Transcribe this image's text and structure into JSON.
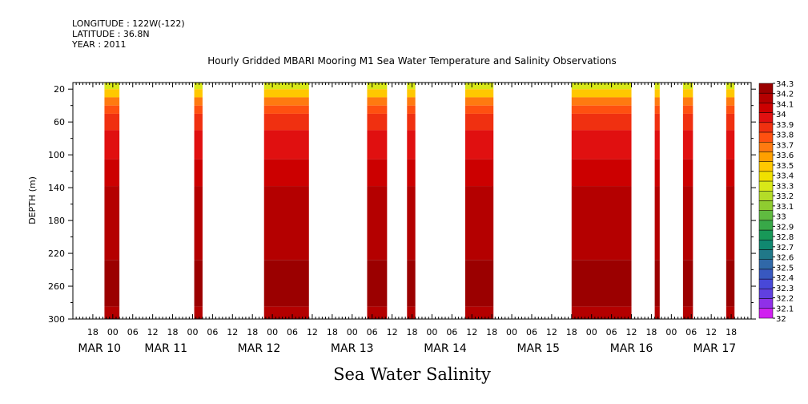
{
  "header": {
    "longitude": "LONGITUDE : 122W(-122)",
    "latitude": "LATITUDE : 36.8N",
    "year": "YEAR : 2011"
  },
  "chart_data": {
    "type": "heatmap",
    "title": "Hourly Gridded MBARI Mooring M1 Sea Water Temperature and Salinity Observations",
    "variable_label": "Sea Water Salinity",
    "ylabel": "DEPTH (m)",
    "ylim": [
      300,
      12
    ],
    "y_ticks": [
      20,
      60,
      100,
      140,
      180,
      220,
      260,
      300
    ],
    "x_range_hours": [
      0,
      204
    ],
    "x_start": "2011-03-10 12:00",
    "x_ticks_hours": [
      6,
      12,
      18,
      24,
      30,
      36,
      42,
      48,
      54,
      60,
      66,
      72,
      78,
      84,
      90,
      96,
      102,
      108,
      114,
      120,
      126,
      132,
      138,
      144,
      150,
      156,
      162,
      168,
      174,
      180,
      186,
      192,
      198
    ],
    "x_tick_labels": [
      "18",
      "00",
      "06",
      "12",
      "18",
      "00",
      "06",
      "12",
      "18",
      "00",
      "06",
      "12",
      "18",
      "00",
      "06",
      "12",
      "18",
      "00",
      "06",
      "12",
      "18",
      "00",
      "06",
      "12",
      "18",
      "00",
      "06",
      "12",
      "18",
      "00",
      "06",
      "12",
      "18"
    ],
    "day_labels": [
      {
        "label": "MAR 10",
        "hour": 8
      },
      {
        "label": "MAR 11",
        "hour": 28
      },
      {
        "label": "MAR 12",
        "hour": 56
      },
      {
        "label": "MAR 13",
        "hour": 84
      },
      {
        "label": "MAR 14",
        "hour": 112
      },
      {
        "label": "MAR 15",
        "hour": 140
      },
      {
        "label": "MAR 16",
        "hour": 168
      },
      {
        "label": "MAR 17",
        "hour": 193
      }
    ],
    "colorbar": {
      "levels": [
        "34.3",
        "34.2",
        "34.1",
        "34",
        "33.9",
        "33.8",
        "33.7",
        "33.6",
        "33.5",
        "33.4",
        "33.3",
        "33.2",
        "33.1",
        "33",
        "32.9",
        "32.8",
        "32.7",
        "32.6",
        "32.5",
        "32.4",
        "32.3",
        "32.2",
        "32.1",
        "32"
      ],
      "colors": [
        "#9b0000",
        "#b40000",
        "#cc0000",
        "#e01010",
        "#f03010",
        "#ff5010",
        "#ff7a10",
        "#ffa000",
        "#ffc800",
        "#f0e000",
        "#d8e818",
        "#b4dc28",
        "#8fcc30",
        "#60bb40",
        "#38a848",
        "#189858",
        "#108870",
        "#207888",
        "#3068a8",
        "#3858c0",
        "#4848d8",
        "#6040e0",
        "#9030e8",
        "#d020f0"
      ]
    },
    "segments_hours": [
      [
        9.5,
        14
      ],
      [
        36.5,
        39
      ],
      [
        57.5,
        71
      ],
      [
        88.5,
        94.5
      ],
      [
        100.5,
        103
      ],
      [
        118,
        126.5
      ],
      [
        150,
        168
      ],
      [
        175,
        176.5
      ],
      [
        183.5,
        186.5
      ],
      [
        196.5,
        199
      ]
    ],
    "profile": [
      {
        "depth_top": 12,
        "depth_bottom": 20,
        "salinity": 33.25
      },
      {
        "depth_top": 20,
        "depth_bottom": 30,
        "salinity": 33.45
      },
      {
        "depth_top": 30,
        "depth_bottom": 40,
        "salinity": 33.6
      },
      {
        "depth_top": 40,
        "depth_bottom": 50,
        "salinity": 33.75
      },
      {
        "depth_top": 50,
        "depth_bottom": 70,
        "salinity": 33.85
      },
      {
        "depth_top": 70,
        "depth_bottom": 105,
        "salinity": 33.95
      },
      {
        "depth_top": 105,
        "depth_bottom": 138,
        "salinity": 34.05
      },
      {
        "depth_top": 138,
        "depth_bottom": 228,
        "salinity": 34.15
      },
      {
        "depth_top": 228,
        "depth_bottom": 285,
        "salinity": 34.25
      },
      {
        "depth_top": 285,
        "depth_bottom": 300,
        "salinity": 34.15
      }
    ]
  }
}
